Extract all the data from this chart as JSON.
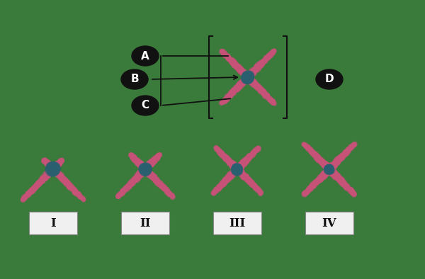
{
  "bg_color": "#3a7a3a",
  "arm_color": "#c8527a",
  "centromere_color": "#2a6070",
  "label_bg": "#111111",
  "label_text": "#ffffff",
  "box_bg": "#f0f0f0",
  "box_text": "#111111",
  "line_color": "#111111",
  "title": "",
  "labels_ABC": [
    "A",
    "B",
    "C"
  ],
  "label_D": "D",
  "roman_labels": [
    "I",
    "II",
    "III",
    "IV"
  ],
  "figsize": [
    6.0,
    3.94
  ],
  "dpi": 100
}
